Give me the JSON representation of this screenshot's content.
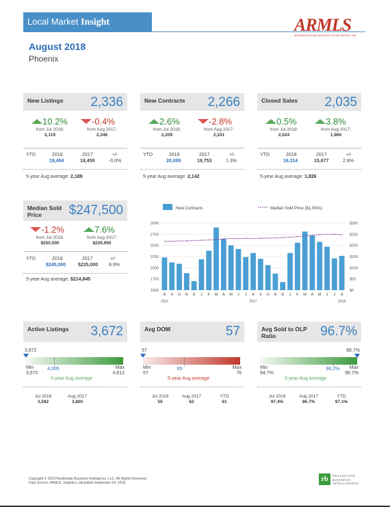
{
  "header": {
    "brand_plain": "Local Market",
    "brand_bold": "Insight"
  },
  "logo": {
    "name": "ARMLS",
    "subtitle": "ARIZONA REGIONAL MULTIPLE LISTING SERVICE, INC."
  },
  "report": {
    "month": "August 2018",
    "city": "Phoenix"
  },
  "cards": [
    {
      "title": "New Listings",
      "value": "2,336",
      "chg1": {
        "dir": "up",
        "pct": "10.2%",
        "label": "from Jul 2018:",
        "value": "2,119"
      },
      "chg2": {
        "dir": "down",
        "pct": "-0.4%",
        "label": "from Aug 2017:",
        "value": "2,346"
      },
      "ytd": {
        "label": "YTD",
        "y1": "2018",
        "y2": "2017",
        "pm": "+/-",
        "v1": "19,454",
        "v2": "19,459",
        "vpm": "-0.0%"
      },
      "avg": {
        "label": "5-year Aug average:",
        "value": "2,189"
      }
    },
    {
      "title": "New Contracts",
      "value": "2,266",
      "chg1": {
        "dir": "up",
        "pct": "2.6%",
        "label": "from Jul 2018:",
        "value": "2,209"
      },
      "chg2": {
        "dir": "down",
        "pct": "-2.8%",
        "label": "from Aug 2017:",
        "value": "2,331"
      },
      "ytd": {
        "label": "YTD",
        "y1": "2018",
        "y2": "2017",
        "pm": "+/-",
        "v1": "20,000",
        "v2": "19,753",
        "vpm": "1.3%"
      },
      "avg": {
        "label": "5-year Aug average:",
        "value": "2,142"
      }
    },
    {
      "title": "Closed Sales",
      "value": "2,035",
      "chg1": {
        "dir": "up",
        "pct": "0.5%",
        "label": "from Jul 2018:",
        "value": "2,024"
      },
      "chg2": {
        "dir": "up",
        "pct": "3.8%",
        "label": "from Aug 2017:",
        "value": "1,960"
      },
      "ytd": {
        "label": "YTD",
        "y1": "2018",
        "y2": "2017",
        "pm": "+/-",
        "v1": "16,114",
        "v2": "15,677",
        "vpm": "2.8%"
      },
      "avg": {
        "label": "5-year Aug average:",
        "value": "1,826"
      }
    }
  ],
  "median": {
    "title": "Median Sold Price",
    "value": "$247,500",
    "chg1": {
      "dir": "down",
      "pct": "-1.2%",
      "label": "from Jul 2018:",
      "value": "$250,500"
    },
    "chg2": {
      "dir": "up",
      "pct": "7.6%",
      "label": "from Aug 2017:",
      "value": "$229,950"
    },
    "ytd": {
      "label": "YTD",
      "y1": "2018",
      "y2": "2017",
      "pm": "+/-",
      "v1": "$245,000",
      "v2": "$225,000",
      "vpm": "8.9%"
    },
    "avg": {
      "label": "5-year Aug average:",
      "value": "$214,845"
    }
  },
  "chart_data": {
    "type": "bar",
    "categories": [
      "A",
      "S",
      "O",
      "N",
      "D",
      "J",
      "F",
      "M",
      "A",
      "M",
      "J",
      "J",
      "A",
      "S",
      "O",
      "N",
      "D",
      "J",
      "F",
      "M",
      "A",
      "M",
      "J",
      "J",
      "A"
    ],
    "year_labels": [
      {
        "label": "2016",
        "index": 0
      },
      {
        "label": "2017",
        "index": 12
      },
      {
        "label": "2018",
        "index": 24
      }
    ],
    "series": [
      {
        "name": "New Contracts",
        "type": "bar",
        "axis": "left",
        "color": "#4a9fd4",
        "values": [
          2230,
          2120,
          2090,
          1880,
          1700,
          2190,
          2380,
          2900,
          2640,
          2500,
          2420,
          2240,
          2330,
          2200,
          2060,
          1870,
          1680,
          2330,
          2560,
          2810,
          2720,
          2580,
          2470,
          2210,
          2266
        ]
      },
      {
        "name": "Median Sold Price ($1,000s)",
        "type": "line",
        "axis": "right",
        "color": "#8b4a9b",
        "values": [
          218,
          219,
          220,
          220,
          222,
          223,
          224,
          226,
          229,
          231,
          230,
          232,
          230,
          232,
          233,
          233,
          235,
          237,
          240,
          242,
          245,
          248,
          250,
          250,
          247.5
        ]
      }
    ],
    "y_left": {
      "min": 1500,
      "max": 3000,
      "ticks": [
        "3000",
        "2750",
        "2500",
        "2250",
        "2000",
        "1750",
        "1500"
      ]
    },
    "y_right": {
      "min": 0,
      "max": 300,
      "ticks": [
        "$300",
        "$250",
        "$200",
        "$150",
        "$100",
        "$50",
        "$0"
      ]
    },
    "legend": "top"
  },
  "gauges": [
    {
      "title": "Active Listings",
      "value": "3,672",
      "current": "3,672",
      "color": "green",
      "min_label": "Min",
      "min": "3,672",
      "max_label": "Max",
      "max": "4,812",
      "avg_val": "4,005",
      "avg_label": "5-year Aug average",
      "marker_pct": 0,
      "avg_pct": 29,
      "hist": [
        {
          "label": "Jul 2018",
          "value": "3,592"
        },
        {
          "label": "Aug 2017",
          "value": "3,800"
        }
      ]
    },
    {
      "title": "Avg DOM",
      "value": "57",
      "current": "57",
      "color": "red",
      "min_label": "Min",
      "min": "57",
      "max_label": "Max",
      "max": "76",
      "avg_val": "65",
      "avg_label": "5-year Aug average",
      "marker_pct": 0,
      "avg_pct": 42,
      "hist": [
        {
          "label": "Jul 2018",
          "value": "55"
        },
        {
          "label": "Aug 2017",
          "value": "62"
        },
        {
          "label": "YTD",
          "value": "61"
        }
      ]
    },
    {
      "title": "Avg Sold to OLP Ratio",
      "value": "96.7%",
      "current": "96.7%",
      "color": "green",
      "min_label": "Min",
      "min": "94.7%",
      "max_label": "Max",
      "max": "96.7%",
      "avg_val": "96.2%",
      "avg_label": "5-year Aug average",
      "marker_pct": 100,
      "avg_pct": 75,
      "hist": [
        {
          "label": "Jul 2018",
          "value": "97.4%"
        },
        {
          "label": "Aug 2017",
          "value": "96.7%"
        },
        {
          "label": "YTD",
          "value": "97.1%"
        }
      ]
    }
  ],
  "footer": {
    "line1": "Copyright © 2018 RealEstate Business Intelligence, LLC. All Rights Reserved.",
    "line2": "Data Source: ARMLS. Statistics calculated September 04, 2018."
  },
  "rbi": {
    "mark": "rb",
    "l1": "REALESTATE",
    "l2": "BUSINESS",
    "l3": "INTELLIGENCE"
  }
}
